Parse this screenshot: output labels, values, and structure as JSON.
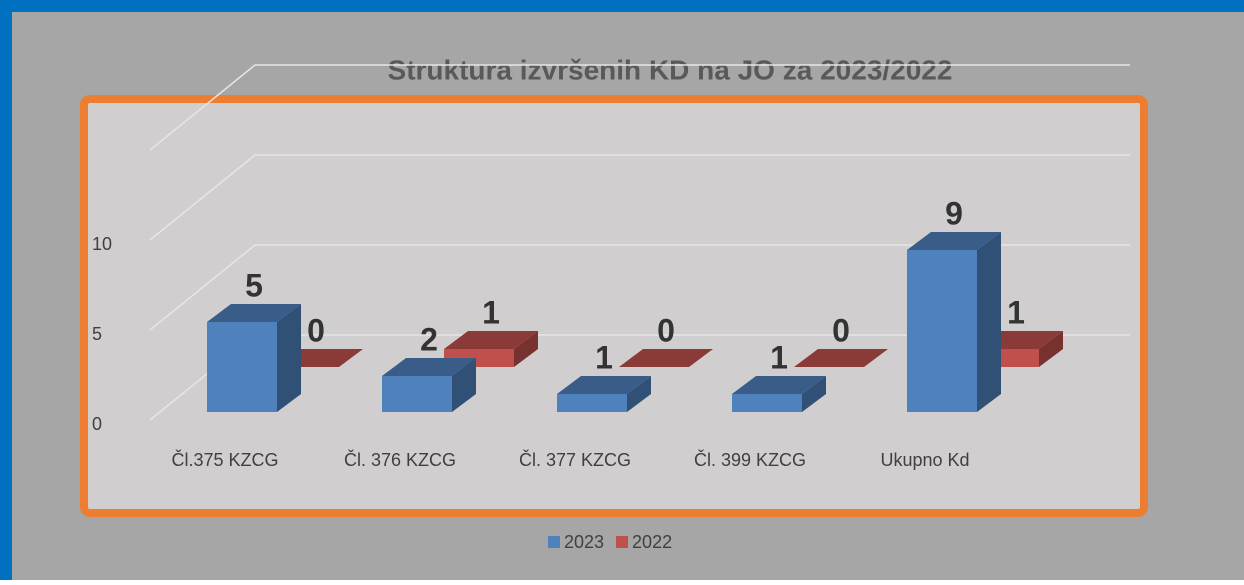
{
  "chart_data": {
    "type": "bar3d",
    "title": "Struktura izvršenih KD na JO za 2023/2022",
    "categories": [
      "Čl.375 KZCG",
      "Čl. 376 KZCG",
      "Čl. 377 KZCG",
      "Čl. 399 KZCG",
      "Ukupno Kd"
    ],
    "series": [
      {
        "name": "2023",
        "color": "#4f81bd",
        "values": [
          5,
          2,
          1,
          1,
          9
        ]
      },
      {
        "name": "2022",
        "color": "#c0504d",
        "values": [
          0,
          1,
          0,
          0,
          1
        ]
      }
    ],
    "ylim": [
      0,
      15
    ],
    "yticks": [
      0,
      5,
      10
    ],
    "grid": true,
    "legend": "bottom"
  }
}
